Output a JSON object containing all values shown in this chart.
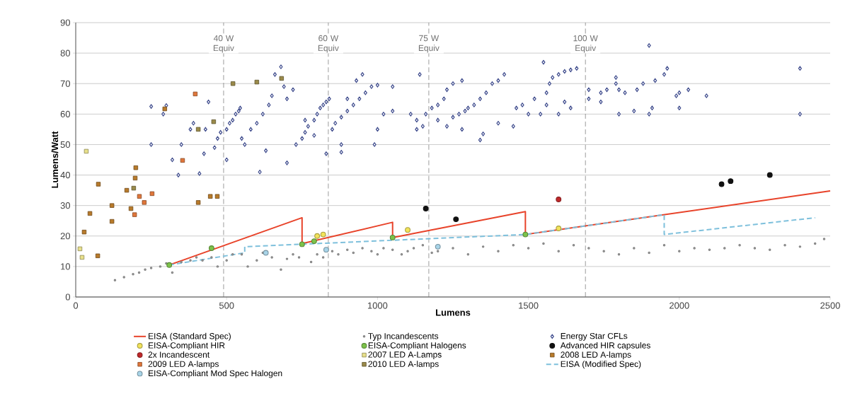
{
  "chart_data": {
    "type": "scatter",
    "xlabel": "Lumens",
    "ylabel": "Lumens/Watt",
    "xlim": [
      0,
      2500
    ],
    "ylim": [
      0,
      90
    ],
    "xticks": [
      0,
      500,
      1000,
      1500,
      2000,
      2500
    ],
    "yticks": [
      0,
      10,
      20,
      30,
      40,
      50,
      60,
      70,
      80,
      90
    ],
    "grid": "y",
    "legend": "bottom",
    "ref_lines": [
      {
        "axis": "x",
        "value": 490,
        "label": "40 W Equiv",
        "color": "#707070",
        "line_style": "dashed"
      },
      {
        "axis": "x",
        "value": 837,
        "label": "60 W Equiv",
        "color": "#707070",
        "line_style": "dashed"
      },
      {
        "axis": "x",
        "value": 1170,
        "label": "75 W Equiv",
        "color": "#707070",
        "line_style": "dashed"
      },
      {
        "axis": "x",
        "value": 1689,
        "label": "100 W Equiv",
        "color": "#707070",
        "line_style": "dashed"
      }
    ],
    "series": [
      {
        "name": "EISA (Standard Spec)",
        "type": "line",
        "line_style": "solid",
        "color": "#e8432a",
        "x": [
          310,
          750,
          750,
          1050,
          1050,
          1490,
          1490,
          2500
        ],
        "values": [
          10.5,
          26,
          17.5,
          24.5,
          19.5,
          28,
          20.5,
          34.8
        ]
      },
      {
        "name": "Typ Incandescents",
        "marker": "circle",
        "color": "#b0b0b0",
        "x": [
          130,
          160,
          190,
          210,
          230,
          250,
          280,
          300,
          320,
          350,
          380,
          400,
          420,
          450,
          470,
          500,
          520,
          550,
          570,
          600,
          620,
          650,
          680,
          700,
          720,
          740,
          780,
          800,
          820,
          850,
          870,
          900,
          920,
          950,
          980,
          1000,
          1020,
          1050,
          1080,
          1100,
          1120,
          1150,
          1180,
          1200,
          1250,
          1300,
          1350,
          1400,
          1450,
          1500,
          1550,
          1600,
          1650,
          1700,
          1750,
          1800,
          1850,
          1900,
          1950,
          2000,
          2050,
          2100,
          2150,
          2200,
          2250,
          2300,
          2350,
          2400,
          2450,
          2480
        ],
        "values": [
          5.5,
          6.5,
          7.5,
          8,
          9,
          9.5,
          10,
          11,
          8,
          11.5,
          12,
          13,
          12,
          13,
          10,
          12,
          14,
          14,
          10,
          12,
          14.5,
          13,
          9,
          12.5,
          14,
          13,
          11.5,
          14,
          13,
          15,
          14,
          15.5,
          14.5,
          16,
          15,
          14,
          16,
          15.5,
          14,
          15,
          16,
          17,
          14.5,
          15,
          16,
          14,
          16.5,
          15,
          17,
          16,
          17.5,
          15,
          17,
          16,
          15,
          14,
          16,
          14.5,
          17,
          15,
          16,
          15.5,
          16,
          17,
          16,
          15.5,
          17,
          16.5,
          17.5,
          19
        ]
      },
      {
        "name": "Energy Star CFLs",
        "marker": "diamond",
        "color": "#3d4a8c",
        "x": [
          250,
          250,
          300,
          290,
          320,
          340,
          350,
          380,
          390,
          410,
          425,
          430,
          440,
          460,
          470,
          480,
          500,
          510,
          520,
          530,
          540,
          545,
          500,
          550,
          560,
          580,
          600,
          620,
          640,
          650,
          610,
          630,
          660,
          680,
          690,
          700,
          720,
          700,
          730,
          750,
          760,
          770,
          790,
          800,
          810,
          820,
          830,
          840,
          760,
          790,
          830,
          850,
          860,
          880,
          900,
          920,
          940,
          960,
          980,
          1000,
          900,
          930,
          950,
          880,
          880,
          990,
          1000,
          1020,
          1050,
          1050,
          1140,
          1110,
          1130,
          1130,
          1150,
          1160,
          1180,
          1200,
          1220,
          1230,
          1250,
          1280,
          1200,
          1230,
          1250,
          1270,
          1290,
          1300,
          1320,
          1340,
          1360,
          1380,
          1400,
          1420,
          1340,
          1350,
          1280,
          1400,
          1450,
          1460,
          1480,
          1500,
          1520,
          1550,
          1560,
          1570,
          1580,
          1600,
          1620,
          1640,
          1660,
          1540,
          1560,
          1600,
          1620,
          1640,
          1700,
          1700,
          1740,
          1740,
          1760,
          1790,
          1790,
          1800,
          1800,
          1820,
          1850,
          1860,
          1880,
          1900,
          1900,
          1910,
          1920,
          1950,
          1960,
          1990,
          2000,
          2000,
          2030,
          2090,
          2400,
          2400
        ],
        "values": [
          62.5,
          50,
          62.8,
          60,
          45,
          40,
          50,
          55,
          57,
          40.5,
          47,
          55,
          64,
          49,
          52,
          54,
          55,
          57,
          58,
          60,
          61,
          62,
          45,
          52,
          50,
          55,
          57,
          60,
          63,
          66,
          41,
          48,
          73,
          75.5,
          69,
          65,
          68,
          44,
          50,
          52,
          54,
          56,
          58,
          60,
          62,
          63,
          64,
          65,
          58,
          53,
          47,
          55,
          57,
          59,
          61,
          63,
          65,
          67,
          69,
          69.5,
          65,
          71,
          73,
          50,
          47.5,
          50,
          55,
          60,
          61,
          69,
          73,
          60,
          58,
          55,
          56,
          60,
          62,
          63,
          65,
          68,
          70,
          71,
          58,
          56,
          59,
          60,
          61,
          62,
          63,
          65,
          67,
          70,
          71,
          73,
          51.5,
          53.5,
          55,
          57,
          56,
          62,
          63,
          60,
          65,
          77,
          67,
          70,
          72,
          73,
          74,
          74.5,
          75,
          60,
          63,
          60,
          64,
          62,
          65,
          68,
          64,
          67,
          68,
          72,
          70,
          60,
          68,
          67,
          61,
          68,
          70,
          82.5,
          60,
          62,
          71,
          73,
          75,
          66,
          62,
          67,
          68,
          66,
          75,
          60
        ]
      },
      {
        "name": "EISA-Compliant HIR",
        "marker": "circle",
        "color": "#f2e35a",
        "x": [
          800,
          820,
          1100,
          1600
        ],
        "values": [
          20,
          20.5,
          22,
          22.5
        ]
      },
      {
        "name": "EISA-Compliant Halogens",
        "marker": "circle",
        "color": "#7cc34a",
        "x": [
          310,
          450,
          750,
          790,
          1050,
          1490
        ],
        "values": [
          10.5,
          16,
          17.3,
          18.3,
          19.5,
          20.5
        ]
      },
      {
        "name": "Advanced HIR capsules",
        "marker": "circle",
        "color": "#111111",
        "x": [
          1160,
          1260,
          2140,
          2170,
          2300
        ],
        "values": [
          29,
          25.5,
          37,
          38,
          40
        ]
      },
      {
        "name": "2x Incandescent",
        "marker": "circle",
        "color": "#c0282a",
        "x": [
          1600
        ],
        "values": [
          32
        ]
      },
      {
        "name": "2007 LED A-Lamps",
        "marker": "square",
        "color": "#e8e08a",
        "x": [
          35,
          14,
          21
        ],
        "values": [
          47.8,
          15.8,
          13
        ]
      },
      {
        "name": "2008 LED A-lamps",
        "marker": "square",
        "color": "#b87a2a",
        "x": [
          73,
          28,
          47,
          75,
          120,
          120,
          169,
          199,
          197,
          183,
          295,
          406,
          446,
          469
        ],
        "values": [
          13.5,
          21.3,
          27.4,
          37,
          30,
          24.8,
          35,
          42.4,
          39,
          29,
          61.7,
          31,
          33,
          33
        ]
      },
      {
        "name": "2009 LED A-lamps",
        "marker": "square",
        "color": "#e0763a",
        "x": [
          396,
          354,
          211,
          227,
          253,
          195
        ],
        "values": [
          66.6,
          44.8,
          33,
          31,
          33.9,
          27
        ]
      },
      {
        "name": "2010 LED A-lamps",
        "marker": "square",
        "color": "#9a8a4a",
        "x": [
          192,
          406,
          457,
          521,
          600,
          682
        ],
        "values": [
          35.7,
          55,
          57.5,
          70,
          70.5,
          71.7
        ]
      },
      {
        "name": "EISA (Modified Spec)",
        "type": "line",
        "line_style": "dashed",
        "color": "#7ec0dc",
        "x": [
          310,
          560,
          560,
          1490,
          1950,
          1950,
          2450
        ],
        "values": [
          10.5,
          14.5,
          16.5,
          20.5,
          27,
          20.5,
          26
        ]
      },
      {
        "name": "EISA-Compliant Mod Spec Halogen",
        "marker": "circle",
        "color": "#a8d4e8",
        "x": [
          630,
          830,
          1200
        ],
        "values": [
          14.5,
          15.5,
          16.5
        ]
      }
    ]
  }
}
